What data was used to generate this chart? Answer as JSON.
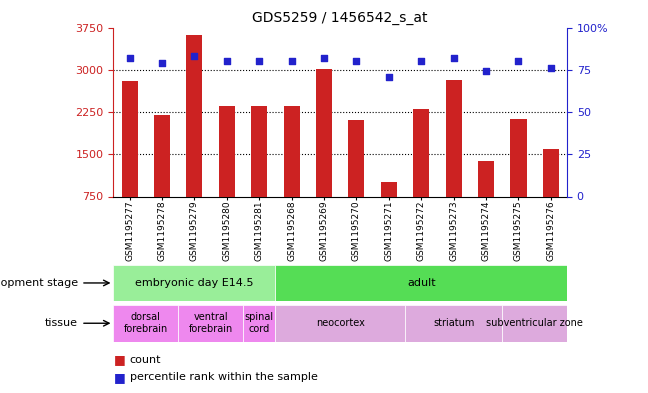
{
  "title": "GDS5259 / 1456542_s_at",
  "samples": [
    "GSM1195277",
    "GSM1195278",
    "GSM1195279",
    "GSM1195280",
    "GSM1195281",
    "GSM1195268",
    "GSM1195269",
    "GSM1195270",
    "GSM1195271",
    "GSM1195272",
    "GSM1195273",
    "GSM1195274",
    "GSM1195275",
    "GSM1195276"
  ],
  "counts": [
    2800,
    2200,
    3620,
    2350,
    2350,
    2350,
    3020,
    2100,
    1000,
    2300,
    2820,
    1380,
    2130,
    1600
  ],
  "percentiles": [
    82,
    79,
    83,
    80,
    80,
    80,
    82,
    80,
    71,
    80,
    82,
    74,
    80,
    76
  ],
  "y_min": 750,
  "y_max": 3750,
  "y_ticks": [
    750,
    1500,
    2250,
    3000,
    3750
  ],
  "y_tick_labels": [
    "750",
    "1500",
    "2250",
    "3000",
    "3750"
  ],
  "right_y_ticks": [
    0,
    25,
    50,
    75,
    100
  ],
  "right_y_tick_labels": [
    "0",
    "25",
    "50",
    "75",
    "100%"
  ],
  "bar_color": "#cc2222",
  "dot_color": "#2222cc",
  "bg_color": "#ffffff",
  "dev_stage_groups": [
    {
      "label": "embryonic day E14.5",
      "start": 0,
      "end": 5,
      "color": "#99ee99"
    },
    {
      "label": "adult",
      "start": 5,
      "end": 14,
      "color": "#55dd55"
    }
  ],
  "tissue_groups": [
    {
      "label": "dorsal\nforebrain",
      "start": 0,
      "end": 2,
      "color": "#ee88ee"
    },
    {
      "label": "ventral\nforebrain",
      "start": 2,
      "end": 4,
      "color": "#ee88ee"
    },
    {
      "label": "spinal\ncord",
      "start": 4,
      "end": 5,
      "color": "#ee88ee"
    },
    {
      "label": "neocortex",
      "start": 5,
      "end": 9,
      "color": "#ddaadd"
    },
    {
      "label": "striatum",
      "start": 9,
      "end": 12,
      "color": "#ddaadd"
    },
    {
      "label": "subventricular zone",
      "start": 12,
      "end": 14,
      "color": "#ddaadd"
    }
  ],
  "xlabel_dev": "development stage",
  "xlabel_tissue": "tissue",
  "legend_count": "count",
  "legend_pct": "percentile rank within the sample",
  "left_axis_color": "#cc2222",
  "right_axis_color": "#2222cc",
  "fig_width": 6.48,
  "fig_height": 3.93
}
